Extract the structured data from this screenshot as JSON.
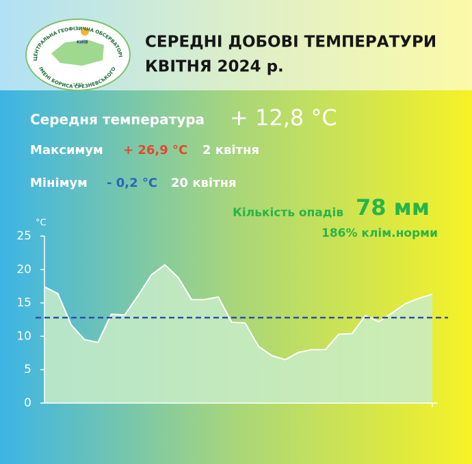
{
  "header": {
    "title_line1": "СЕРЕДНІ ДОБОВІ ТЕМПЕРАТУРИ",
    "title_line2": "КВІТНЯ 2024 р.",
    "logo": {
      "top": "ЦЕНТРАЛЬНА ГЕОФІЗИЧНА ОБСЕРВАТОРІЯ",
      "city": "КИЇВ",
      "bottom": "ІМЕНІ БОРИСА СРЕЗНЕВСЬКОГО",
      "year": "1855"
    }
  },
  "summary": {
    "mean_label": "Середня температура",
    "mean_value": "+ 12,8 °C",
    "max_label": "Максимум",
    "max_value": "+ 26,9 °C",
    "max_date": "2 квітня",
    "min_label": "Мінімум",
    "min_value": "- 0,2 °C",
    "min_date": "20 квітня",
    "precip_label": "Кількість опадів",
    "precip_value": "78 мм",
    "precip_norm": "186% клім.норми"
  },
  "chart_data": {
    "type": "area",
    "y_unit": "°C",
    "values": [
      17.4,
      16.4,
      11.7,
      9.5,
      9.1,
      13.3,
      13.2,
      16.1,
      19.2,
      20.7,
      18.8,
      15.5,
      15.5,
      15.9,
      12.1,
      12.0,
      8.5,
      7.1,
      6.5,
      7.6,
      8.0,
      8.0,
      10.3,
      10.4,
      13.1,
      12.2,
      13.5,
      14.9,
      15.7,
      16.3
    ],
    "color": "#c8ecc8",
    "line_color": "#ffffff",
    "reference_line": 12.8,
    "reference_color": "#2f4fa8",
    "ylim": [
      0,
      25
    ],
    "yticks": [
      0,
      5,
      10,
      15,
      20,
      25
    ]
  }
}
